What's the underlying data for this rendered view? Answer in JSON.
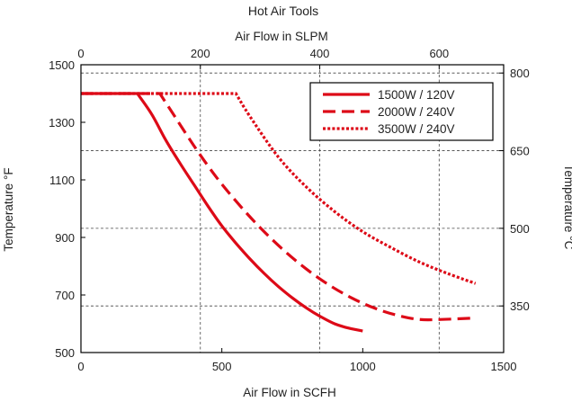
{
  "chart_data": {
    "type": "line",
    "title": "Hot Air Tools",
    "xlabel": "Air Flow in SCFH",
    "ylabel": "Temperature °F",
    "x2label": "Air Flow in SLPM",
    "y2label": "Temperature °C",
    "xlim": [
      0,
      1500
    ],
    "ylim": [
      500,
      1500
    ],
    "x2lim": [
      0,
      708
    ],
    "y2lim": [
      260,
      816
    ],
    "xticks": [
      0,
      500,
      1000,
      1500
    ],
    "yticks": [
      500,
      700,
      900,
      1100,
      1300,
      1500
    ],
    "x2ticks": [
      0,
      200,
      400,
      600
    ],
    "y2ticks": [
      350,
      500,
      650,
      800
    ],
    "grid": true,
    "legend_position": "top-right",
    "colors": {
      "series": "#dd0a17",
      "grid": "#444444",
      "axis": "#000000"
    },
    "series": [
      {
        "name": "1500W / 120V",
        "style": "solid",
        "x": [
          0,
          200,
          250,
          300,
          350,
          400,
          450,
          500,
          550,
          600,
          650,
          700,
          750,
          800,
          850,
          900,
          950,
          1000
        ],
        "y": [
          1400,
          1400,
          1330,
          1240,
          1160,
          1085,
          1010,
          940,
          880,
          825,
          775,
          730,
          690,
          655,
          625,
          600,
          585,
          575
        ]
      },
      {
        "name": "2000W / 240V",
        "style": "dashed",
        "x": [
          0,
          280,
          320,
          400,
          480,
          560,
          640,
          720,
          800,
          880,
          960,
          1040,
          1120,
          1200,
          1280,
          1400
        ],
        "y": [
          1400,
          1400,
          1340,
          1220,
          1110,
          1015,
          930,
          855,
          790,
          735,
          690,
          655,
          630,
          615,
          615,
          620
        ]
      },
      {
        "name": "3500W / 240V",
        "style": "dotted",
        "x": [
          0,
          550,
          600,
          700,
          800,
          900,
          1000,
          1100,
          1200,
          1300,
          1400
        ],
        "y": [
          1400,
          1400,
          1320,
          1180,
          1075,
          990,
          920,
          865,
          815,
          775,
          740
        ]
      }
    ]
  }
}
